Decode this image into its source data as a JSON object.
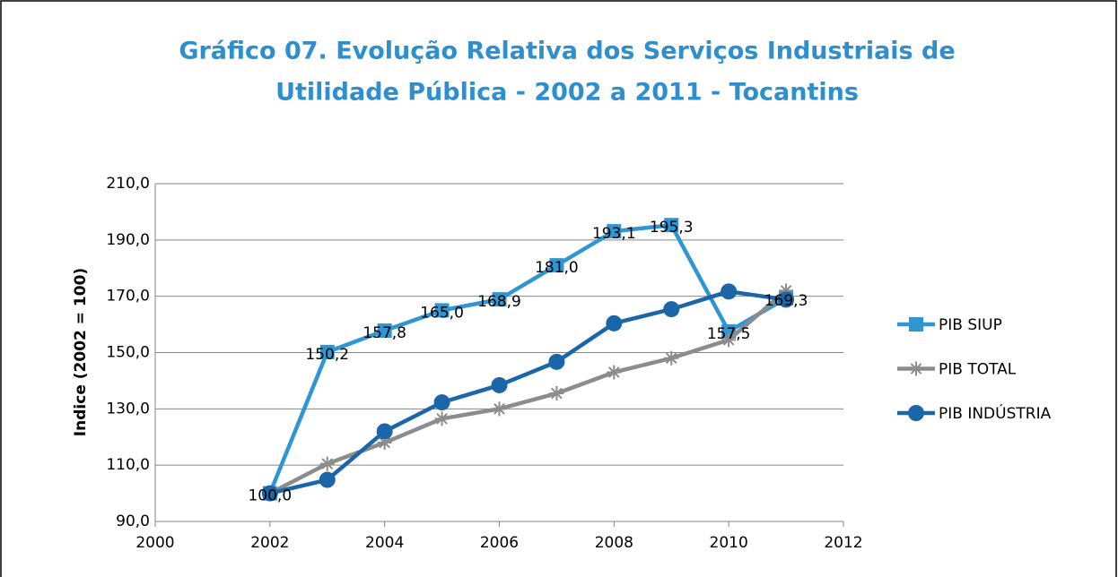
{
  "chart_data": {
    "type": "line",
    "title": [
      "Gráfico 07. Evolução Relativa dos Serviços Industriais de",
      "Utilidade Pública  - 2002 a 2011 - Tocantins"
    ],
    "y_label": "Indice (2002 = 100)",
    "x": [
      2002,
      2003,
      2004,
      2005,
      2006,
      2007,
      2008,
      2009,
      2010,
      2011
    ],
    "xlim": [
      2000,
      2012
    ],
    "xticks": [
      2000,
      2002,
      2004,
      2006,
      2008,
      2010,
      2012
    ],
    "ylim": [
      90,
      210
    ],
    "yticks": [
      {
        "value": 90,
        "label": "90,0"
      },
      {
        "value": 110,
        "label": "110,0"
      },
      {
        "value": 130,
        "label": "130,0"
      },
      {
        "value": 150,
        "label": "150,0"
      },
      {
        "value": 170,
        "label": "170,0"
      },
      {
        "value": 190,
        "label": "190,0"
      },
      {
        "value": 210,
        "label": "210,0"
      }
    ],
    "grid": true,
    "legend": "right",
    "series": [
      {
        "name": "PIB SIUP",
        "color": "#2e97d3",
        "marker": "square",
        "values": [
          100.0,
          150.2,
          157.8,
          165.0,
          168.9,
          181.0,
          193.1,
          195.3,
          157.5,
          169.3
        ],
        "value_labels": [
          "100,0",
          "150,2",
          "157,8",
          "165,0",
          "168,9",
          "181,0",
          "193,1",
          "195,3",
          "157,5",
          "169,3"
        ]
      },
      {
        "name": "PIB TOTAL",
        "color": "#8c8c8c",
        "marker": "star",
        "values": [
          100.0,
          110.5,
          118.0,
          126.5,
          130.0,
          135.5,
          143.0,
          148.0,
          154.5,
          172.0
        ]
      },
      {
        "name": "PIB INDÚSTRIA",
        "color": "#1b66a8",
        "marker": "circle",
        "values": [
          100.0,
          104.8,
          122.0,
          132.3,
          138.4,
          146.7,
          160.4,
          165.4,
          171.7,
          168.8
        ]
      }
    ]
  }
}
